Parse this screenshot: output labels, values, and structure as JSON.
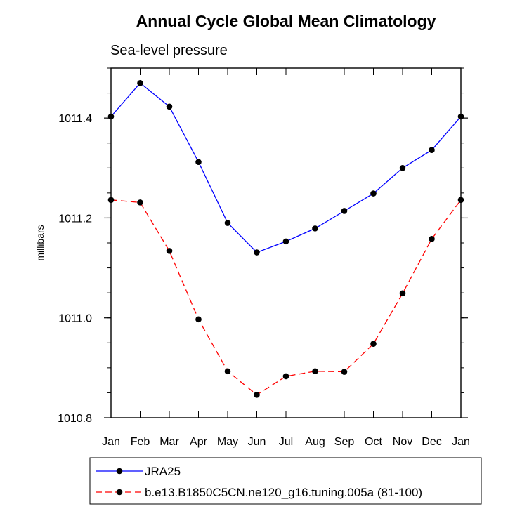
{
  "chart_data": {
    "type": "line",
    "title": "Annual Cycle Global Mean Climatology",
    "subtitle": "Sea-level pressure",
    "xlabel": "",
    "ylabel": "millibars",
    "categories": [
      "Jan",
      "Feb",
      "Mar",
      "Apr",
      "May",
      "Jun",
      "Jul",
      "Aug",
      "Sep",
      "Oct",
      "Nov",
      "Dec",
      "Jan"
    ],
    "ylim": [
      1010.8,
      1011.5
    ],
    "yticks": [
      1010.8,
      1011.0,
      1011.2,
      1011.4
    ],
    "ytick_labels": [
      "1010.8",
      "1011.0",
      "1011.2",
      "1011.4"
    ],
    "grid": false,
    "legend_position": "bottom",
    "series": [
      {
        "name": "JRA25",
        "color": "#0000ff",
        "dash": "solid",
        "marker": "filled-circle",
        "values": [
          1011.403,
          1011.47,
          1011.423,
          1011.312,
          1011.19,
          1011.131,
          1011.153,
          1011.179,
          1011.214,
          1011.249,
          1011.3,
          1011.336,
          1011.403
        ]
      },
      {
        "name": "b.e13.B1850C5CN.ne120_g16.tuning.005a (81-100)",
        "color": "#ff0000",
        "dash": "dashed",
        "marker": "filled-circle",
        "values": [
          1011.236,
          1011.231,
          1011.134,
          1010.997,
          1010.893,
          1010.846,
          1010.883,
          1010.893,
          1010.892,
          1010.948,
          1011.049,
          1011.158,
          1011.236
        ]
      }
    ]
  }
}
